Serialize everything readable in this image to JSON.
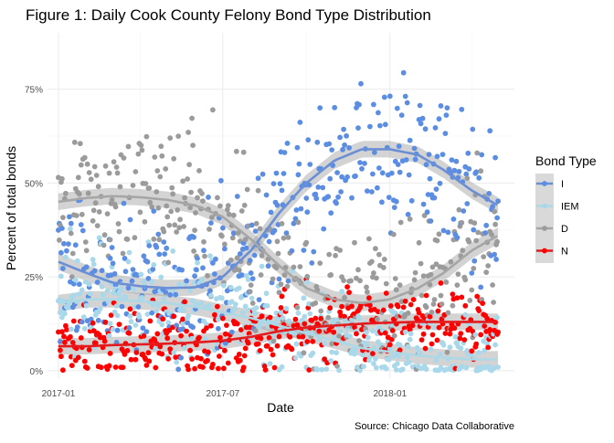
{
  "chart_data": {
    "type": "scatter",
    "title": "Figure 1: Daily Cook County Felony Bond Type Distribution",
    "xlabel": "Date",
    "ylabel": "Percent of total bonds",
    "caption": "Source: Chicago Data Collaborative",
    "x_axis": {
      "type": "date",
      "range": [
        "2016-12-20",
        "2018-05-18"
      ],
      "ticks": [
        "2017-01-01",
        "2017-07-01",
        "2018-01-01"
      ],
      "tick_labels": [
        "2017-01",
        "2017-07",
        "2018-01"
      ],
      "data_range": [
        "2017-01-01",
        "2018-04-30"
      ]
    },
    "y_axis": {
      "range": [
        -0.02,
        0.9
      ],
      "ticks": [
        0,
        0.25,
        0.5,
        0.75
      ],
      "tick_labels": [
        "0%",
        "25%",
        "50%",
        "75%"
      ]
    },
    "grid": true,
    "legend": {
      "title": "Bond Type",
      "position": "right"
    },
    "series": [
      {
        "name": "I",
        "color": "#5b8de3",
        "smooth_color": "#6b8fd4",
        "trend": [
          {
            "x": "2017-01-01",
            "y": 0.29
          },
          {
            "x": "2017-02-01",
            "y": 0.26
          },
          {
            "x": "2017-03-01",
            "y": 0.235
          },
          {
            "x": "2017-04-01",
            "y": 0.225
          },
          {
            "x": "2017-05-01",
            "y": 0.22
          },
          {
            "x": "2017-06-01",
            "y": 0.222
          },
          {
            "x": "2017-07-01",
            "y": 0.25
          },
          {
            "x": "2017-08-01",
            "y": 0.32
          },
          {
            "x": "2017-09-01",
            "y": 0.42
          },
          {
            "x": "2017-10-01",
            "y": 0.5
          },
          {
            "x": "2017-11-01",
            "y": 0.56
          },
          {
            "x": "2017-12-01",
            "y": 0.59
          },
          {
            "x": "2018-01-01",
            "y": 0.59
          },
          {
            "x": "2018-02-01",
            "y": 0.575
          },
          {
            "x": "2018-03-01",
            "y": 0.535
          },
          {
            "x": "2018-04-01",
            "y": 0.48
          },
          {
            "x": "2018-04-30",
            "y": 0.44
          }
        ],
        "spread": 0.1
      },
      {
        "name": "IEM",
        "color": "#a8d8ea",
        "smooth_color": "#add8e6",
        "trend": [
          {
            "x": "2017-01-01",
            "y": 0.18
          },
          {
            "x": "2017-02-01",
            "y": 0.19
          },
          {
            "x": "2017-03-01",
            "y": 0.19
          },
          {
            "x": "2017-04-01",
            "y": 0.185
          },
          {
            "x": "2017-05-01",
            "y": 0.18
          },
          {
            "x": "2017-06-01",
            "y": 0.17
          },
          {
            "x": "2017-07-01",
            "y": 0.155
          },
          {
            "x": "2017-08-01",
            "y": 0.14
          },
          {
            "x": "2017-09-01",
            "y": 0.12
          },
          {
            "x": "2017-10-01",
            "y": 0.1
          },
          {
            "x": "2017-11-01",
            "y": 0.08
          },
          {
            "x": "2017-12-01",
            "y": 0.06
          },
          {
            "x": "2018-01-01",
            "y": 0.05
          },
          {
            "x": "2018-02-01",
            "y": 0.04
          },
          {
            "x": "2018-03-01",
            "y": 0.035
          },
          {
            "x": "2018-04-01",
            "y": 0.03
          },
          {
            "x": "2018-04-30",
            "y": 0.03
          }
        ],
        "spread": 0.07
      },
      {
        "name": "D",
        "color": "#9b9b9b",
        "smooth_color": "#a6a6a6",
        "trend": [
          {
            "x": "2017-01-01",
            "y": 0.45
          },
          {
            "x": "2017-02-01",
            "y": 0.46
          },
          {
            "x": "2017-03-01",
            "y": 0.465
          },
          {
            "x": "2017-04-01",
            "y": 0.462
          },
          {
            "x": "2017-05-01",
            "y": 0.455
          },
          {
            "x": "2017-06-01",
            "y": 0.44
          },
          {
            "x": "2017-07-01",
            "y": 0.41
          },
          {
            "x": "2017-08-01",
            "y": 0.35
          },
          {
            "x": "2017-09-01",
            "y": 0.28
          },
          {
            "x": "2017-10-01",
            "y": 0.22
          },
          {
            "x": "2017-11-01",
            "y": 0.19
          },
          {
            "x": "2017-12-01",
            "y": 0.18
          },
          {
            "x": "2018-01-01",
            "y": 0.19
          },
          {
            "x": "2018-02-01",
            "y": 0.22
          },
          {
            "x": "2018-03-01",
            "y": 0.26
          },
          {
            "x": "2018-04-01",
            "y": 0.32
          },
          {
            "x": "2018-04-30",
            "y": 0.36
          }
        ],
        "spread": 0.1
      },
      {
        "name": "N",
        "color": "#ff0000",
        "smooth_color": "#e41a1c",
        "trend": [
          {
            "x": "2017-01-01",
            "y": 0.065
          },
          {
            "x": "2017-02-01",
            "y": 0.065
          },
          {
            "x": "2017-03-01",
            "y": 0.068
          },
          {
            "x": "2017-04-01",
            "y": 0.07
          },
          {
            "x": "2017-05-01",
            "y": 0.072
          },
          {
            "x": "2017-06-01",
            "y": 0.075
          },
          {
            "x": "2017-07-01",
            "y": 0.08
          },
          {
            "x": "2017-08-01",
            "y": 0.09
          },
          {
            "x": "2017-09-01",
            "y": 0.105
          },
          {
            "x": "2017-10-01",
            "y": 0.115
          },
          {
            "x": "2017-11-01",
            "y": 0.12
          },
          {
            "x": "2017-12-01",
            "y": 0.125
          },
          {
            "x": "2018-01-01",
            "y": 0.128
          },
          {
            "x": "2018-02-01",
            "y": 0.13
          },
          {
            "x": "2018-03-01",
            "y": 0.13
          },
          {
            "x": "2018-04-01",
            "y": 0.13
          },
          {
            "x": "2018-04-30",
            "y": 0.13
          }
        ],
        "spread": 0.05
      }
    ]
  }
}
